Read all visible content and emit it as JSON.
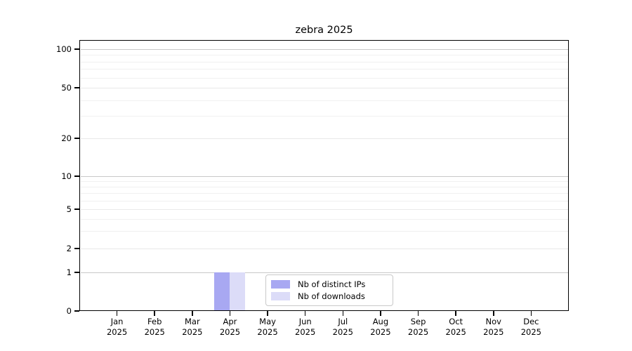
{
  "title": "zebra 2025",
  "legend": {
    "items": [
      {
        "label": "Nb of distinct IPs",
        "color": "#a8a8f2"
      },
      {
        "label": "Nb of downloads",
        "color": "#dcdcf8"
      }
    ]
  },
  "chart_data": {
    "type": "bar",
    "title": "zebra 2025",
    "categories": [
      "Jan 2025",
      "Feb 2025",
      "Mar 2025",
      "Apr 2025",
      "May 2025",
      "Jun 2025",
      "Jul 2025",
      "Aug 2025",
      "Sep 2025",
      "Oct 2025",
      "Nov 2025",
      "Dec 2025"
    ],
    "series": [
      {
        "name": "Nb of distinct IPs",
        "color": "#a8a8f2",
        "values": [
          0,
          0,
          0,
          1,
          0,
          0,
          0,
          0,
          0,
          0,
          0,
          0
        ]
      },
      {
        "name": "Nb of downloads",
        "color": "#dcdcf8",
        "values": [
          0,
          0,
          0,
          1,
          0,
          0,
          0,
          0,
          0,
          0,
          0,
          0
        ]
      }
    ],
    "xlabel": "",
    "ylabel": "",
    "yscale": "symlog",
    "yticks": [
      0,
      1,
      2,
      5,
      10,
      20,
      50,
      100
    ],
    "ylim": [
      0,
      115
    ],
    "grid": "horizontal",
    "legend_position": "lower-center-inside",
    "background": "#ffffff"
  }
}
